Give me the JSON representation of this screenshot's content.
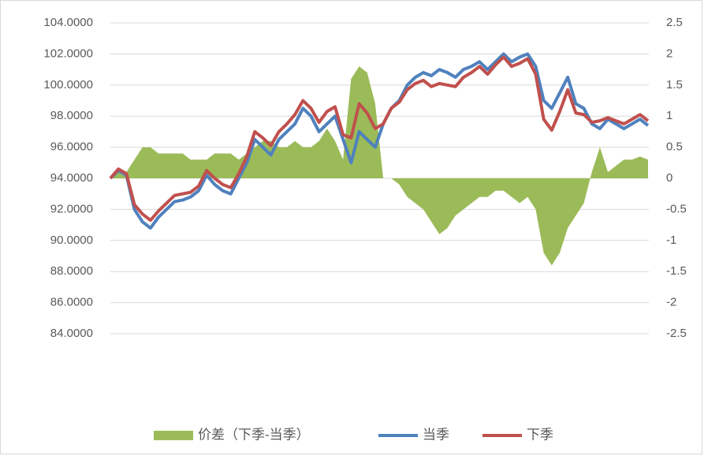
{
  "chart_data": {
    "type": "line",
    "categories": [
      null,
      null,
      null,
      null,
      null,
      null,
      null,
      null,
      null,
      null,
      null,
      null,
      null,
      null,
      null,
      null,
      null,
      null,
      null,
      null,
      null,
      null,
      null,
      null,
      null,
      null,
      null,
      null,
      null,
      null,
      null,
      null,
      null,
      null,
      null,
      null,
      null,
      null,
      null,
      null,
      null,
      null,
      null,
      null,
      null,
      null,
      null,
      null,
      null,
      null,
      null,
      null,
      null,
      null,
      null,
      null,
      null,
      null,
      null,
      null,
      null,
      null,
      null,
      null,
      null,
      null,
      null,
      null
    ],
    "ylim": [
      84,
      104
    ],
    "yticks": [
      {
        "value": 84,
        "label": "84.0000"
      },
      {
        "value": 86,
        "label": "86.0000"
      },
      {
        "value": 88,
        "label": "88.0000"
      },
      {
        "value": 90,
        "label": "90.0000"
      },
      {
        "value": 92,
        "label": "92.0000"
      },
      {
        "value": 94,
        "label": "94.0000"
      },
      {
        "value": 96,
        "label": "96.0000"
      },
      {
        "value": 98,
        "label": "98.0000"
      },
      {
        "value": 100,
        "label": "100.0000"
      },
      {
        "value": 102,
        "label": "102.0000"
      },
      {
        "value": 104,
        "label": "104.0000"
      }
    ],
    "y2lim": [
      -2.5,
      2.5
    ],
    "y2ticks": [
      -2.5,
      -2,
      -1.5,
      -1,
      -0.5,
      0,
      0.5,
      1,
      1.5,
      2,
      2.5
    ],
    "grid": true,
    "legend": "bottom",
    "series": [
      {
        "name": "价差（下季-当季）",
        "type": "area",
        "axis": "y2",
        "color": "#9bbb59",
        "values": [
          0,
          0.1,
          0.1,
          0.3,
          0.5,
          0.5,
          0.4,
          0.4,
          0.4,
          0.4,
          0.3,
          0.3,
          0.3,
          0.4,
          0.4,
          0.4,
          0.3,
          0.4,
          0.5,
          0.6,
          0.6,
          0.5,
          0.5,
          0.6,
          0.5,
          0.5,
          0.6,
          0.8,
          0.6,
          0.3,
          1.6,
          1.8,
          1.7,
          1.2,
          0,
          0,
          -0.1,
          -0.3,
          -0.4,
          -0.5,
          -0.7,
          -0.9,
          -0.8,
          -0.6,
          -0.5,
          -0.4,
          -0.3,
          -0.3,
          -0.2,
          -0.2,
          -0.3,
          -0.4,
          -0.3,
          -0.5,
          -1.2,
          -1.4,
          -1.2,
          -0.8,
          -0.6,
          -0.4,
          0.1,
          0.5,
          0.1,
          0.2,
          0.3,
          0.3,
          0.35,
          0.3
        ]
      },
      {
        "name": "当季",
        "type": "line",
        "color": "#4f81bd",
        "values": [
          94.0,
          94.5,
          94.2,
          92.0,
          91.2,
          90.8,
          91.5,
          92.0,
          92.5,
          92.6,
          92.8,
          93.2,
          94.2,
          93.6,
          93.2,
          93.0,
          94.0,
          95.0,
          96.5,
          96.0,
          95.5,
          96.5,
          97.0,
          97.5,
          98.5,
          98.0,
          97.0,
          97.5,
          98.0,
          96.5,
          95.0,
          97.0,
          96.5,
          96.0,
          97.5,
          98.5,
          99.0,
          100.0,
          100.5,
          100.8,
          100.6,
          101.0,
          100.8,
          100.5,
          101.0,
          101.2,
          101.5,
          101.0,
          101.5,
          102.0,
          101.5,
          101.8,
          102.0,
          101.2,
          99.0,
          98.5,
          99.5,
          100.5,
          98.8,
          98.5,
          97.5,
          97.2,
          97.8,
          97.5,
          97.2,
          97.5,
          97.8,
          97.4
        ]
      },
      {
        "name": "下季",
        "type": "line",
        "color": "#c0504d",
        "values": [
          94.0,
          94.6,
          94.3,
          92.3,
          91.7,
          91.3,
          91.9,
          92.4,
          92.9,
          93.0,
          93.1,
          93.5,
          94.5,
          94.0,
          93.6,
          93.4,
          94.3,
          95.4,
          97.0,
          96.6,
          96.1,
          97.0,
          97.5,
          98.1,
          99.0,
          98.5,
          97.6,
          98.3,
          98.6,
          96.8,
          96.6,
          98.8,
          98.2,
          97.2,
          97.5,
          98.5,
          98.9,
          99.7,
          100.1,
          100.3,
          99.9,
          100.1,
          100.0,
          99.9,
          100.5,
          100.8,
          101.2,
          100.7,
          101.3,
          101.8,
          101.2,
          101.4,
          101.7,
          100.7,
          97.8,
          97.1,
          98.3,
          99.7,
          98.2,
          98.1,
          97.6,
          97.7,
          97.9,
          97.7,
          97.5,
          97.8,
          98.1,
          97.7
        ]
      }
    ]
  }
}
